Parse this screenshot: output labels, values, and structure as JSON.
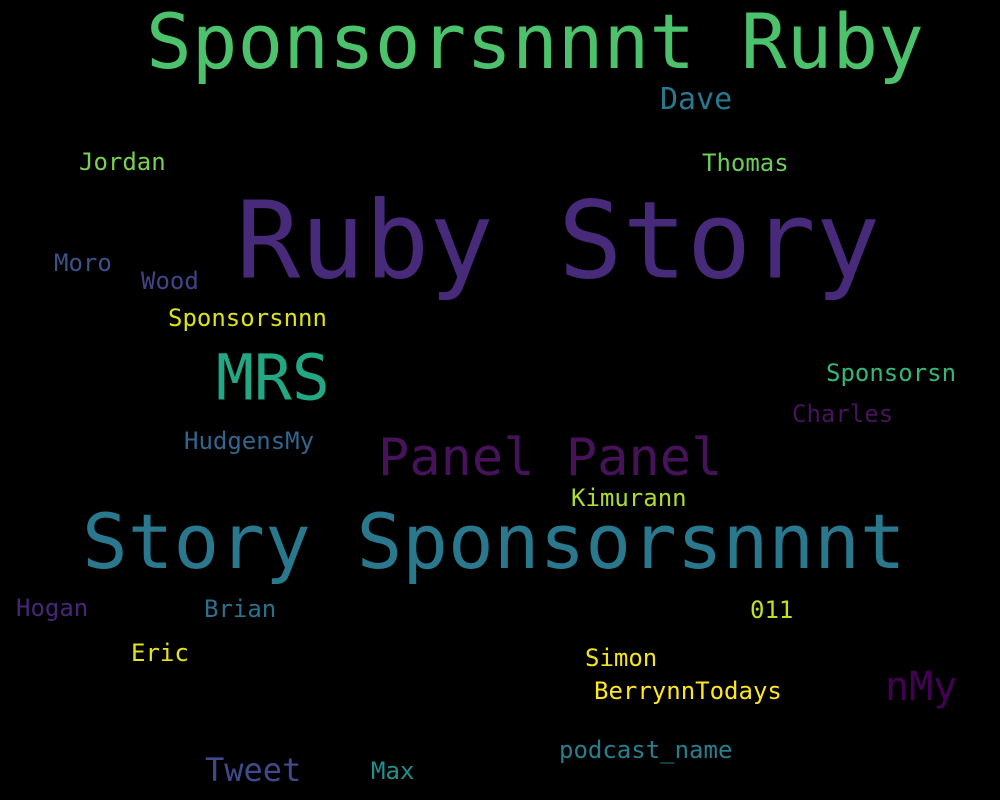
{
  "background": "#000000",
  "words": [
    {
      "text": "Sponsorsnnnt Ruby",
      "color": "#4cc26c"
    },
    {
      "text": "Ruby Story",
      "color": "#472a7a"
    },
    {
      "text": "Story Sponsorsnnnt",
      "color": "#2a788e"
    },
    {
      "text": "MRS",
      "color": "#23a883"
    },
    {
      "text": "Panel Panel",
      "color": "#46125a"
    },
    {
      "text": "nMy",
      "color": "#440154"
    },
    {
      "text": "Dave",
      "color": "#2a788e"
    },
    {
      "text": "Jordan",
      "color": "#7ad151"
    },
    {
      "text": "Thomas",
      "color": "#6ccd5a"
    },
    {
      "text": "Moro",
      "color": "#3b528b"
    },
    {
      "text": "Wood",
      "color": "#414487"
    },
    {
      "text": "Sponsorsnnn",
      "color": "#dde318"
    },
    {
      "text": "Sponsorsn",
      "color": "#35b779"
    },
    {
      "text": "Charles",
      "color": "#46145c"
    },
    {
      "text": "HudgensMy",
      "color": "#31668e"
    },
    {
      "text": "Kimurann",
      "color": "#addc30"
    },
    {
      "text": "Hogan",
      "color": "#482677"
    },
    {
      "text": "Brian",
      "color": "#2d708e"
    },
    {
      "text": "011",
      "color": "#c2df23"
    },
    {
      "text": "Eric",
      "color": "#e5e419"
    },
    {
      "text": "Simon",
      "color": "#f1e51d"
    },
    {
      "text": "BerrynnTodays",
      "color": "#fde725"
    },
    {
      "text": "Tweet",
      "color": "#3e4a89"
    },
    {
      "text": "Max",
      "color": "#21918c"
    },
    {
      "text": "podcast_name",
      "color": "#277f8e"
    }
  ]
}
